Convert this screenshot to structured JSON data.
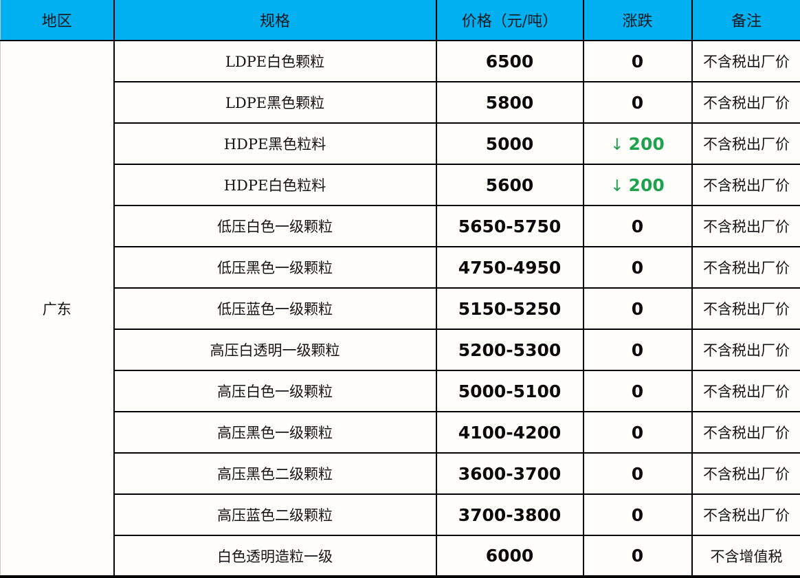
{
  "colors": {
    "header_bg": "#00b0f0",
    "down_green": "#1fa24e",
    "grid_border": "#000000",
    "page_bg": "#fffefb"
  },
  "table": {
    "columns": [
      {
        "label": "地区"
      },
      {
        "label": "规格"
      },
      {
        "label": "价格（元/吨）"
      },
      {
        "label": "涨跌"
      },
      {
        "label": "备注"
      }
    ],
    "region": "广东",
    "rows": [
      {
        "spec": "LDPE白色颗粒",
        "price": "6500",
        "change_text": "0",
        "change_arrow": "",
        "change_direction": "flat",
        "note": "不含税出厂价"
      },
      {
        "spec": "LDPE黑色颗粒",
        "price": "5800",
        "change_text": "0",
        "change_arrow": "",
        "change_direction": "flat",
        "note": "不含税出厂价"
      },
      {
        "spec": "HDPE黑色粒料",
        "price": "5000",
        "change_text": "200",
        "change_arrow": "↓",
        "change_direction": "down",
        "note": "不含税出厂价"
      },
      {
        "spec": "HDPE白色粒料",
        "price": "5600",
        "change_text": "200",
        "change_arrow": "↓",
        "change_direction": "down",
        "note": "不含税出厂价"
      },
      {
        "spec": "低压白色一级颗粒",
        "price": "5650-5750",
        "change_text": "0",
        "change_arrow": "",
        "change_direction": "flat",
        "note": "不含税出厂价"
      },
      {
        "spec": "低压黑色一级颗粒",
        "price": "4750-4950",
        "change_text": "0",
        "change_arrow": "",
        "change_direction": "flat",
        "note": "不含税出厂价"
      },
      {
        "spec": "低压蓝色一级颗粒",
        "price": "5150-5250",
        "change_text": "0",
        "change_arrow": "",
        "change_direction": "flat",
        "note": "不含税出厂价"
      },
      {
        "spec": "高压白透明一级颗粒",
        "price": "5200-5300",
        "change_text": "0",
        "change_arrow": "",
        "change_direction": "flat",
        "note": "不含税出厂价"
      },
      {
        "spec": "高压白色一级颗粒",
        "price": "5000-5100",
        "change_text": "0",
        "change_arrow": "",
        "change_direction": "flat",
        "note": "不含税出厂价"
      },
      {
        "spec": "高压黑色一级颗粒",
        "price": "4100-4200",
        "change_text": "0",
        "change_arrow": "",
        "change_direction": "flat",
        "note": "不含税出厂价"
      },
      {
        "spec": "高压黑色二级颗粒",
        "price": "3600-3700",
        "change_text": "0",
        "change_arrow": "",
        "change_direction": "flat",
        "note": "不含税出厂价"
      },
      {
        "spec": "高压蓝色二级颗粒",
        "price": "3700-3800",
        "change_text": "0",
        "change_arrow": "",
        "change_direction": "flat",
        "note": "不含税出厂价"
      },
      {
        "spec": "白色透明造粒一级",
        "price": "6000",
        "change_text": "0",
        "change_arrow": "",
        "change_direction": "flat",
        "note": "不含增值税"
      }
    ]
  }
}
